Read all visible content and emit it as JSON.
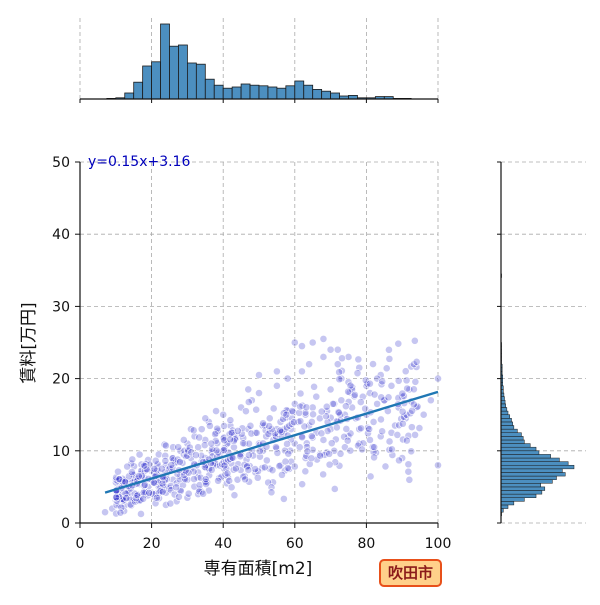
{
  "chart_data": {
    "type": "scatter",
    "title": "",
    "xlabel": "専有面積[m2]",
    "ylabel": "賃料[万円]",
    "xlim": [
      0,
      100
    ],
    "ylim": [
      0,
      50
    ],
    "x_ticks": [
      0,
      20,
      40,
      60,
      80,
      100
    ],
    "y_ticks": [
      0,
      10,
      20,
      30,
      40,
      50
    ],
    "grid": true,
    "equation": "y=0.15x+3.16",
    "regression": {
      "slope": 0.15,
      "intercept": 3.16,
      "x_range": [
        7,
        100
      ]
    },
    "badge": "吹田市",
    "colors": {
      "points": "#3333cc",
      "regression_line": "#1f77b4",
      "histogram_fill": "#4c8fc0",
      "histogram_edge": "#1a1a1a",
      "badge_fill": "#ffd08a",
      "badge_edge": "#e8501a"
    },
    "x_histogram": {
      "bin_width": 2.5,
      "bin_start": 7.5,
      "counts": [
        1,
        2,
        10,
        28,
        55,
        62,
        125,
        88,
        90,
        60,
        58,
        33,
        23,
        18,
        20,
        25,
        23,
        22,
        20,
        18,
        22,
        30,
        23,
        16,
        13,
        10,
        5,
        6,
        2,
        2,
        4,
        4,
        1,
        1
      ]
    },
    "y_histogram": {
      "bin_width": 0.5,
      "bin_start": 0,
      "counts": [
        0,
        0,
        1,
        4,
        12,
        22,
        40,
        60,
        70,
        75,
        68,
        88,
        95,
        110,
        105,
        125,
        115,
        100,
        85,
        65,
        60,
        50,
        40,
        38,
        35,
        28,
        22,
        20,
        18,
        15,
        12,
        10,
        8,
        7,
        6,
        5,
        4,
        4,
        3,
        3,
        3,
        2,
        2,
        2,
        1,
        1,
        1,
        1,
        1,
        1,
        0,
        0,
        0,
        0,
        0,
        0,
        0,
        0,
        0,
        0,
        0,
        0,
        0,
        0,
        0,
        0,
        0,
        0,
        1,
        0,
        0,
        0,
        0,
        0,
        0,
        0,
        0,
        0,
        0,
        0,
        0,
        0,
        0,
        0,
        0,
        0,
        0,
        0,
        0,
        0,
        0,
        0,
        0,
        0,
        0,
        0,
        0,
        0,
        0,
        0
      ]
    },
    "scatter_sample": {
      "description_of_density": "dense cloud roughly following the regression line",
      "x": [
        7,
        9,
        11,
        12,
        14,
        15,
        16,
        17,
        18,
        19,
        20,
        20,
        21,
        21,
        22,
        22,
        23,
        23,
        24,
        24,
        25,
        25,
        26,
        26,
        27,
        27,
        28,
        28,
        29,
        29,
        30,
        30,
        31,
        31,
        32,
        32,
        33,
        33,
        34,
        34,
        35,
        35,
        36,
        36,
        37,
        38,
        38,
        39,
        40,
        40,
        41,
        42,
        42,
        43,
        44,
        45,
        45,
        46,
        47,
        48,
        48,
        49,
        50,
        50,
        51,
        52,
        53,
        54,
        55,
        55,
        56,
        57,
        58,
        58,
        59,
        60,
        60,
        61,
        62,
        62,
        63,
        64,
        64,
        65,
        66,
        66,
        67,
        68,
        68,
        69,
        70,
        70,
        71,
        72,
        72,
        73,
        74,
        75,
        75,
        76,
        77,
        78,
        78,
        79,
        80,
        81,
        82,
        83,
        84,
        85,
        86,
        87,
        88,
        89,
        90,
        91,
        92,
        94,
        96,
        98,
        100,
        100,
        65,
        70,
        72,
        75,
        68,
        80,
        83,
        85,
        90,
        55,
        50,
        47,
        60,
        62,
        73,
        24,
        27,
        30,
        33,
        36,
        22,
        26,
        29,
        31,
        35,
        38,
        41,
        44,
        46,
        49,
        53,
        56,
        59,
        63,
        67,
        71,
        74,
        78,
        81,
        84,
        87
      ],
      "y": [
        1.5,
        2.0,
        2.5,
        3.0,
        3.5,
        3.2,
        4.0,
        3.8,
        4.5,
        5.0,
        4.2,
        6.0,
        5.5,
        3.5,
        5.0,
        7.0,
        4.5,
        6.5,
        5.0,
        8.0,
        4.8,
        7.5,
        6.0,
        9.0,
        5.5,
        8.5,
        6.5,
        10.0,
        7.0,
        9.5,
        6.0,
        11.0,
        7.5,
        9.0,
        8.0,
        12.0,
        7.0,
        10.5,
        8.5,
        13.0,
        9.0,
        11.5,
        7.5,
        14.0,
        10.0,
        8.0,
        12.5,
        9.5,
        10.0,
        15.0,
        11.0,
        9.0,
        13.5,
        10.5,
        12.0,
        9.5,
        16.0,
        11.0,
        13.0,
        10.0,
        17.0,
        12.5,
        11.0,
        18.0,
        13.5,
        12.0,
        14.5,
        11.5,
        13.0,
        19.0,
        14.0,
        12.5,
        15.5,
        20.0,
        13.0,
        11.0,
        16.5,
        14.0,
        12.0,
        21.0,
        15.0,
        13.5,
        22.0,
        16.0,
        12.5,
        17.5,
        14.5,
        11.5,
        23.0,
        15.5,
        13.0,
        18.5,
        16.5,
        14.0,
        24.0,
        17.0,
        15.0,
        12.0,
        19.5,
        16.0,
        14.5,
        13.0,
        21.5,
        17.5,
        15.0,
        18.0,
        14.0,
        16.5,
        20.5,
        17.0,
        15.5,
        19.0,
        13.5,
        16.0,
        17.5,
        14.5,
        18.5,
        16.0,
        15.0,
        17.0,
        20.0,
        8.0,
        25.0,
        24.0,
        22.0,
        23.0,
        25.5,
        19.0,
        20.0,
        17.0,
        9.0,
        21.0,
        20.5,
        18.5,
        25.0,
        24.5,
        20.0,
        2.5,
        3.0,
        3.5,
        4.0,
        4.5,
        9.5,
        10.5,
        11.5,
        13.0,
        14.5,
        15.5,
        5.5,
        6.0,
        6.5,
        7.0,
        7.5,
        8.0,
        8.5,
        9.0,
        9.5,
        10.0,
        10.5,
        11.0,
        11.5,
        12.0,
        12.5
      ]
    }
  }
}
